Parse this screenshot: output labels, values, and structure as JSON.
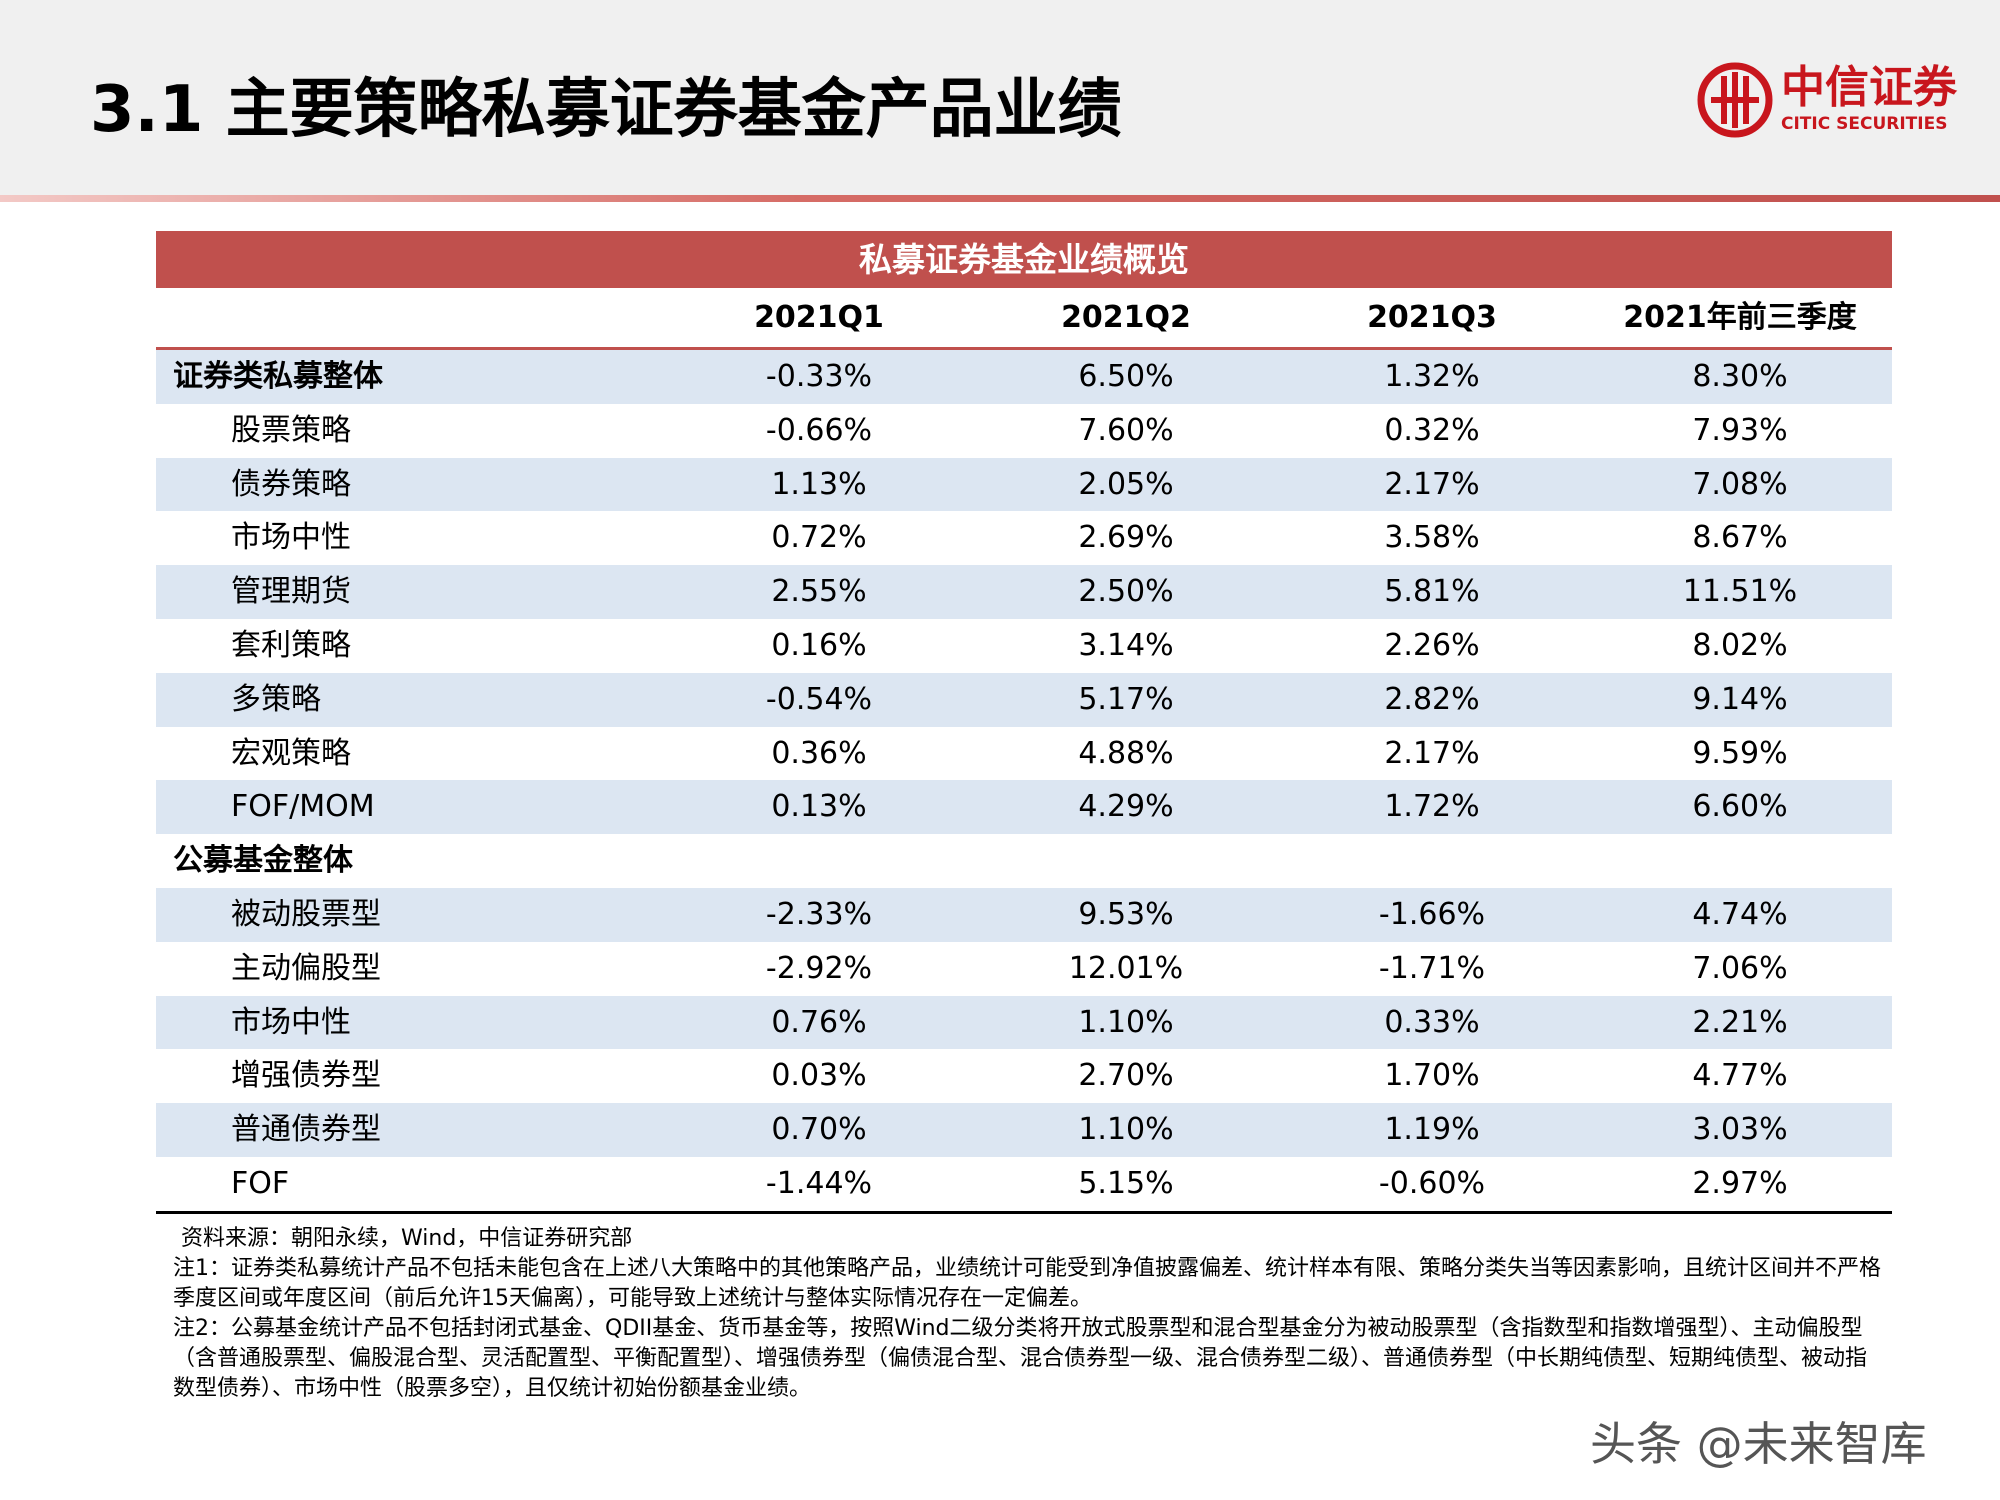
{
  "header": {
    "title": "3.1 主要策略私募证券基金产品业绩",
    "logo": {
      "name": "中信证券",
      "english": "CITIC SECURITIES"
    }
  },
  "table": {
    "title": "私募证券基金业绩概览",
    "columns": [
      "2021Q1",
      "2021Q2",
      "2021Q3",
      "2021年前三季度"
    ],
    "groups": [
      {
        "label": "证券类私募整体",
        "values": [
          "-0.33%",
          "6.50%",
          "1.32%",
          "8.30%"
        ],
        "rows": [
          {
            "label": "股票策略",
            "values": [
              "-0.66%",
              "7.60%",
              "0.32%",
              "7.93%"
            ]
          },
          {
            "label": "债券策略",
            "values": [
              "1.13%",
              "2.05%",
              "2.17%",
              "7.08%"
            ]
          },
          {
            "label": "市场中性",
            "values": [
              "0.72%",
              "2.69%",
              "3.58%",
              "8.67%"
            ]
          },
          {
            "label": "管理期货",
            "values": [
              "2.55%",
              "2.50%",
              "5.81%",
              "11.51%"
            ]
          },
          {
            "label": "套利策略",
            "values": [
              "0.16%",
              "3.14%",
              "2.26%",
              "8.02%"
            ]
          },
          {
            "label": "多策略",
            "values": [
              "-0.54%",
              "5.17%",
              "2.82%",
              "9.14%"
            ]
          },
          {
            "label": "宏观策略",
            "values": [
              "0.36%",
              "4.88%",
              "2.17%",
              "9.59%"
            ]
          },
          {
            "label": "FOF/MOM",
            "values": [
              "0.13%",
              "4.29%",
              "1.72%",
              "6.60%"
            ]
          }
        ]
      },
      {
        "label": "公募基金整体",
        "rows": [
          {
            "label": "被动股票型",
            "values": [
              "-2.33%",
              "9.53%",
              "-1.66%",
              "4.74%"
            ]
          },
          {
            "label": "主动偏股型",
            "values": [
              "-2.92%",
              "12.01%",
              "-1.71%",
              "7.06%"
            ]
          },
          {
            "label": "市场中性",
            "values": [
              "0.76%",
              "1.10%",
              "0.33%",
              "2.21%"
            ]
          },
          {
            "label": "增强债券型",
            "values": [
              "0.03%",
              "2.70%",
              "1.70%",
              "4.77%"
            ]
          },
          {
            "label": "普通债券型",
            "values": [
              "0.70%",
              "1.10%",
              "1.19%",
              "3.03%"
            ]
          },
          {
            "label": "FOF",
            "values": [
              "-1.44%",
              "5.15%",
              "-0.60%",
              "2.97%"
            ]
          }
        ]
      }
    ]
  },
  "notes": {
    "source": "资料来源：朝阳永续，Wind，中信证券研究部",
    "note1": "注1：证券类私募统计产品不包括未能包含在上述八大策略中的其他策略产品，业绩统计可能受到净值披露偏差、统计样本有限、策略分类失当等因素影响，且统计区间并不严格季度区间或年度区间（前后允许15天偏离），可能导致上述统计与整体实际情况存在一定偏差。",
    "note2": "注2：公募基金统计产品不包括封闭式基金、QDII基金、货币基金等，按照Wind二级分类将开放式股票型和混合型基金分为被动股票型（含指数型和指数增强型）、主动偏股型（含普通股票型、偏股混合型、灵活配置型、平衡配置型）、增强债券型（偏债混合型、混合债券型一级、混合债券型二级）、普通债券型（中长期纯债型、短期纯债型、被动指数型债券）、市场中性（股票多空），且仅统计初始份额基金业绩。"
  },
  "watermark": "头条 @未来智库"
}
